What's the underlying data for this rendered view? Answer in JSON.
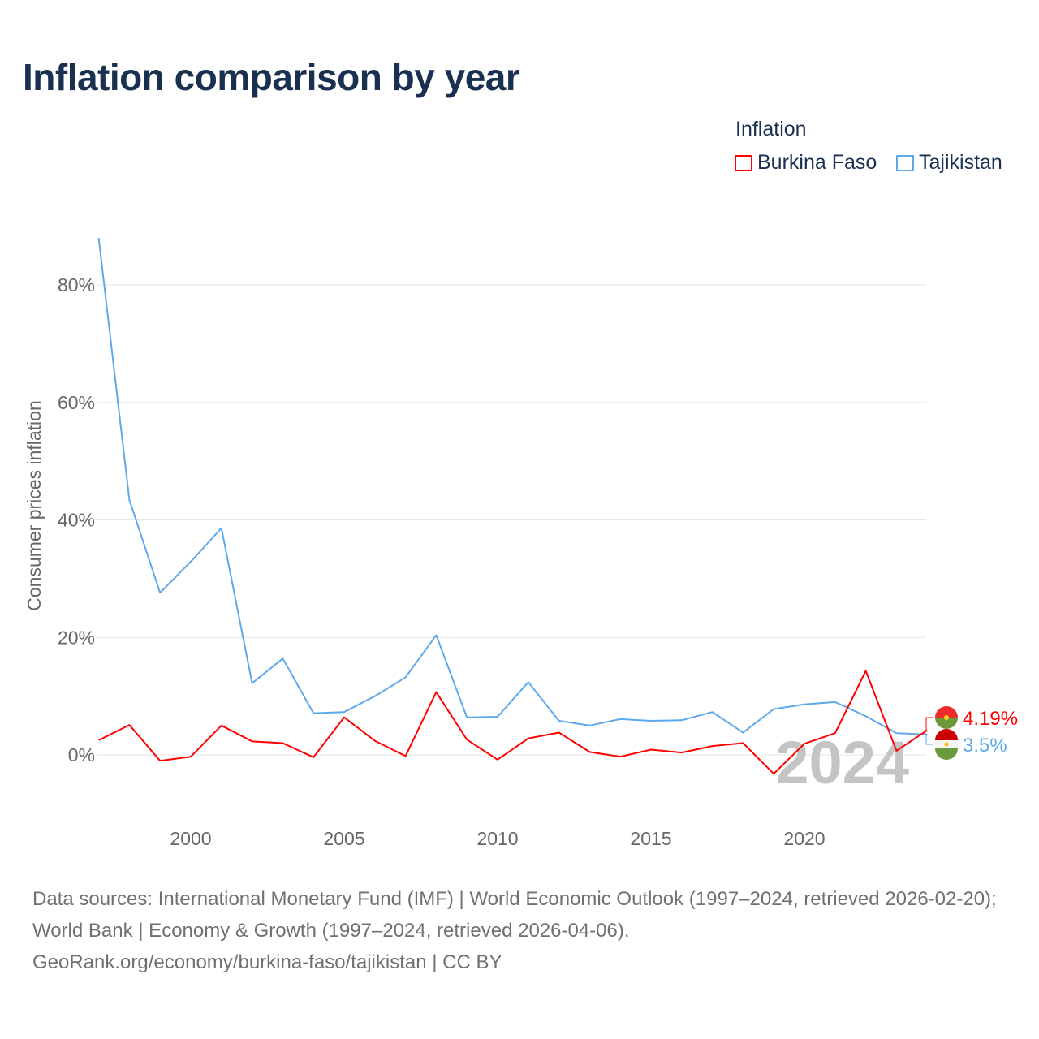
{
  "title": "Inflation comparison by year",
  "legend": {
    "title": "Inflation",
    "items": [
      {
        "name": "Burkina Faso",
        "color": "#ff0000"
      },
      {
        "name": "Tajikistan",
        "color": "#5fa8ea"
      }
    ]
  },
  "chart_data": {
    "type": "line",
    "title": "Inflation comparison by year",
    "ylabel": "Consumer prices inflation",
    "xlabel": "",
    "x": [
      1997,
      1998,
      1999,
      2000,
      2001,
      2002,
      2003,
      2004,
      2005,
      2006,
      2007,
      2008,
      2009,
      2010,
      2011,
      2012,
      2013,
      2014,
      2015,
      2016,
      2017,
      2018,
      2019,
      2020,
      2021,
      2022,
      2023,
      2024
    ],
    "xlim": [
      1997,
      2024
    ],
    "ylim": [
      -10,
      90
    ],
    "yticks": [
      0,
      20,
      40,
      60,
      80
    ],
    "ytick_labels": [
      "0%",
      "20%",
      "40%",
      "60%",
      "80%"
    ],
    "xticks": [
      2000,
      2005,
      2010,
      2015,
      2020
    ],
    "xtick_labels": [
      "2000",
      "2005",
      "2010",
      "2015",
      "2020"
    ],
    "grid": true,
    "legend_position": "top-right",
    "series": [
      {
        "name": "Burkina Faso",
        "color": "#ff0000",
        "end_label": "4.19%",
        "values": [
          2.5,
          5.1,
          -1.0,
          -0.3,
          5.0,
          2.3,
          2.0,
          -0.4,
          6.4,
          2.4,
          -0.2,
          10.7,
          2.6,
          -0.8,
          2.8,
          3.8,
          0.5,
          -0.3,
          0.9,
          0.4,
          1.5,
          2.0,
          -3.2,
          1.9,
          3.7,
          14.3,
          0.7,
          4.19
        ]
      },
      {
        "name": "Tajikistan",
        "color": "#5fa8ea",
        "end_label": "3.5%",
        "values": [
          88.0,
          43.4,
          27.6,
          32.9,
          38.6,
          12.2,
          16.4,
          7.1,
          7.3,
          10.0,
          13.2,
          20.4,
          6.4,
          6.5,
          12.4,
          5.8,
          5.0,
          6.1,
          5.8,
          5.9,
          7.3,
          3.8,
          7.8,
          8.6,
          9.0,
          6.6,
          3.7,
          3.5
        ]
      }
    ],
    "annotation": "2024"
  },
  "footer": {
    "sources": "Data sources: International Monetary Fund (IMF) | World Economic Outlook (1997–2024, retrieved 2026-02-20); World Bank | Economy & Growth (1997–2024, retrieved 2026-04-06).",
    "link": "GeoRank.org/economy/burkina-faso/tajikistan | CC BY"
  }
}
